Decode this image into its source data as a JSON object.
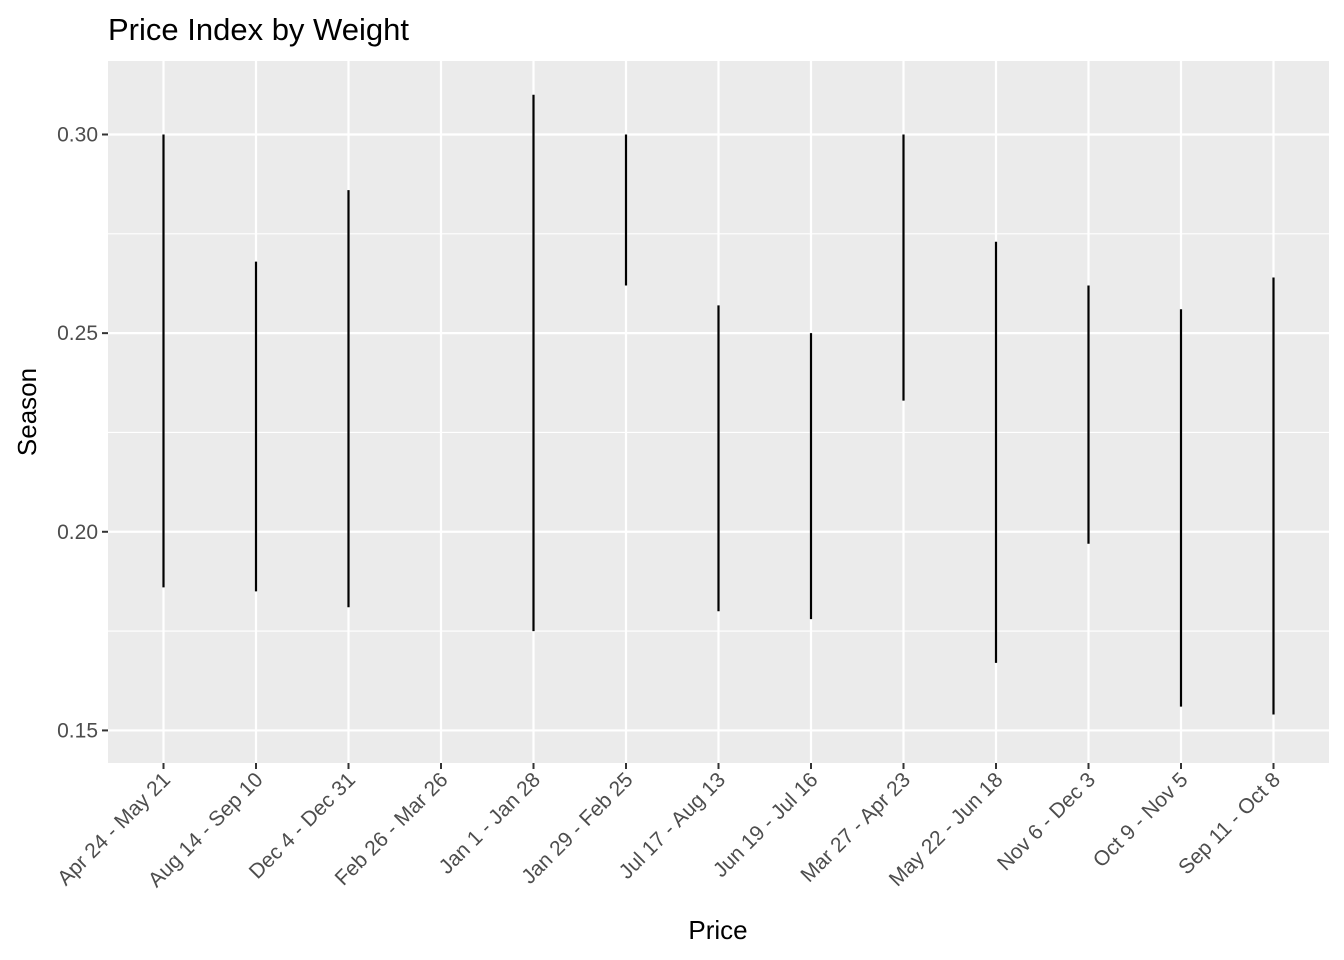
{
  "chart_data": {
    "type": "range",
    "title": "Price Index by Weight",
    "xlabel": "Price",
    "ylabel": "Season",
    "ylim": [
      0.1418,
      0.3185
    ],
    "yticks": [
      0.15,
      0.2,
      0.25,
      0.3
    ],
    "ytick_labels": [
      "0.15",
      "0.20",
      "0.25",
      "0.30"
    ],
    "categories": [
      "Apr 24 - May 21",
      "Aug 14 - Sep 10",
      "Dec 4 - Dec 31",
      "Feb 26 - Mar 26",
      "Jan 1 - Jan 28",
      "Jan 29 - Feb 25",
      "Jul 17 - Aug 13",
      "Jun 19 - Jul 16",
      "Mar 27 - Apr 23",
      "May 22 - Jun 18",
      "Nov  6 - Dec 3",
      "Oct  9 - Nov  5",
      "Sep 11 - Oct 8"
    ],
    "ranges": [
      [
        0.186,
        0.3
      ],
      [
        0.185,
        0.268
      ],
      [
        0.181,
        0.286
      ],
      null,
      [
        0.175,
        0.31
      ],
      [
        0.262,
        0.3
      ],
      [
        0.18,
        0.257
      ],
      [
        0.178,
        0.25
      ],
      [
        0.233,
        0.3
      ],
      [
        0.167,
        0.273
      ],
      [
        0.197,
        0.262
      ],
      [
        0.156,
        0.256
      ],
      [
        0.154,
        0.264
      ]
    ],
    "grid": true,
    "panel_background": "#ebebeb",
    "gridline_color": "#ffffff",
    "line_color": "#000000"
  }
}
